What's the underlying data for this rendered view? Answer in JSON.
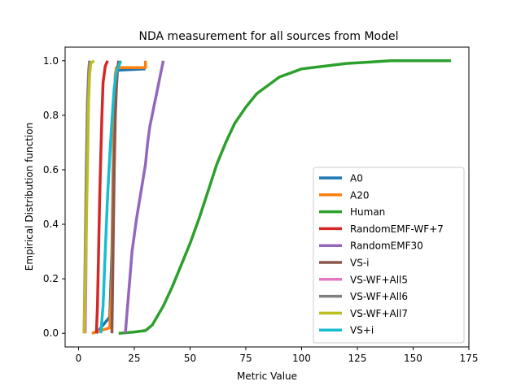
{
  "chart_data": {
    "type": "line",
    "title": "NDA measurement for all sources from Model",
    "xlabel": "Metric Value",
    "ylabel": "Empirical Distribution function",
    "xlim": [
      -6,
      175
    ],
    "ylim": [
      -0.05,
      1.05
    ],
    "xticks": [
      0,
      25,
      50,
      75,
      100,
      125,
      150,
      175
    ],
    "yticks": [
      0.0,
      0.2,
      0.4,
      0.6,
      0.8,
      1.0
    ],
    "xtick_labels": [
      "0",
      "25",
      "50",
      "75",
      "100",
      "125",
      "150",
      "175"
    ],
    "ytick_labels": [
      "0.0",
      "0.2",
      "0.4",
      "0.6",
      "0.8",
      "1.0"
    ],
    "grid": false,
    "legend_position": "lower-right",
    "series": [
      {
        "name": "A0",
        "color": "#1f77b4",
        "x": [
          8,
          11,
          14,
          15,
          15.5,
          16,
          16.5,
          17,
          30
        ],
        "y": [
          0.0,
          0.03,
          0.06,
          0.3,
          0.6,
          0.85,
          0.95,
          0.965,
          0.97
        ]
      },
      {
        "name": "A20",
        "color": "#ff7f0e",
        "x": [
          6,
          14,
          15,
          15.5,
          16,
          16.5,
          17,
          30,
          30
        ],
        "y": [
          0.0,
          0.02,
          0.2,
          0.5,
          0.8,
          0.95,
          0.975,
          0.975,
          1.0
        ]
      },
      {
        "name": "Human",
        "color": "#2ca02c",
        "x": [
          18,
          25,
          30,
          33,
          38,
          42,
          46,
          50,
          54,
          58,
          62,
          66,
          70,
          75,
          80,
          85,
          90,
          100,
          110,
          120,
          130,
          140,
          150,
          167
        ],
        "y": [
          0.0,
          0.005,
          0.01,
          0.03,
          0.1,
          0.17,
          0.25,
          0.33,
          0.42,
          0.52,
          0.62,
          0.7,
          0.77,
          0.83,
          0.88,
          0.91,
          0.94,
          0.97,
          0.98,
          0.99,
          0.995,
          1.0,
          1.0,
          1.0
        ]
      },
      {
        "name": "RandomEMF-WF+7",
        "color": "#d62728",
        "x": [
          8,
          8.5,
          9,
          9.5,
          10,
          10.5,
          11,
          12,
          13
        ],
        "y": [
          0.0,
          0.1,
          0.3,
          0.5,
          0.65,
          0.8,
          0.92,
          0.98,
          1.0
        ]
      },
      {
        "name": "RandomEMF30",
        "color": "#9467bd",
        "x": [
          21,
          22,
          23,
          24,
          26,
          28,
          30,
          31,
          32,
          33,
          34,
          35,
          36,
          37,
          38
        ],
        "y": [
          0.0,
          0.1,
          0.2,
          0.3,
          0.42,
          0.52,
          0.62,
          0.7,
          0.76,
          0.8,
          0.84,
          0.88,
          0.92,
          0.96,
          1.0
        ]
      },
      {
        "name": "VS-i",
        "color": "#8c564b",
        "x": [
          15,
          15.5,
          16,
          16.5,
          17,
          17.5,
          18
        ],
        "y": [
          0.0,
          0.3,
          0.6,
          0.8,
          0.9,
          0.97,
          1.0
        ]
      },
      {
        "name": "VS-WF+All5",
        "color": "#e377c2",
        "x": [
          3,
          3.3,
          3.6,
          4,
          4.3,
          4.6,
          5
        ],
        "y": [
          0.0,
          0.2,
          0.5,
          0.75,
          0.9,
          0.97,
          1.0
        ]
      },
      {
        "name": "VS-WF+All6",
        "color": "#7f7f7f",
        "x": [
          2.5,
          3,
          3.5,
          4,
          4.5,
          5
        ],
        "y": [
          0.0,
          0.3,
          0.6,
          0.85,
          0.95,
          1.0
        ]
      },
      {
        "name": "VS-WF+All7",
        "color": "#bcbd22",
        "x": [
          2.5,
          3,
          4,
          4.5,
          5,
          5.5,
          7
        ],
        "y": [
          0.0,
          0.2,
          0.6,
          0.85,
          0.95,
          0.99,
          1.0
        ]
      },
      {
        "name": "VS+i",
        "color": "#17becf",
        "x": [
          10,
          11,
          12,
          13,
          14,
          15,
          16,
          17,
          18,
          19
        ],
        "y": [
          0.0,
          0.1,
          0.3,
          0.5,
          0.65,
          0.78,
          0.9,
          0.96,
          0.98,
          1.0
        ]
      }
    ]
  }
}
